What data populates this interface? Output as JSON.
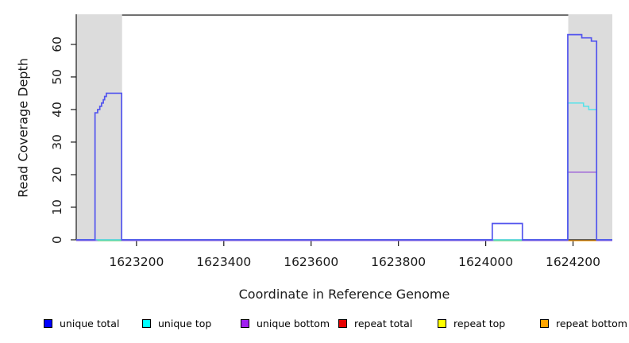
{
  "chart_data": {
    "type": "line",
    "step": true,
    "title": "",
    "xlabel": "Coordinate in Reference Genome",
    "ylabel": "Read Coverage Depth",
    "xlim": [
      1623062,
      1624290
    ],
    "ylim": [
      0,
      69
    ],
    "xticks": [
      1623200,
      1623400,
      1623600,
      1623800,
      1624000,
      1624200
    ],
    "yticks": [
      0,
      10,
      20,
      30,
      40,
      50,
      60
    ],
    "grid": false,
    "legend_position": "bottom",
    "axis_color": "#1a1a1a",
    "shade_color": "#dcdcdc",
    "shaded_regions": [
      {
        "x0": 1623062,
        "x1": 1623167
      },
      {
        "x0": 1624189,
        "x1": 1624290
      }
    ],
    "series": [
      {
        "name": "unique total",
        "legend_color": "#0000ff",
        "line_color": "#5355ee",
        "visible": true,
        "points": [
          [
            1623062,
            0
          ],
          [
            1623105,
            39
          ],
          [
            1623111,
            40
          ],
          [
            1623116,
            41
          ],
          [
            1623120,
            42
          ],
          [
            1623124,
            43
          ],
          [
            1623127,
            44
          ],
          [
            1623131,
            45
          ],
          [
            1623166,
            0
          ],
          [
            1624015,
            5
          ],
          [
            1624084,
            0
          ],
          [
            1624188,
            63
          ],
          [
            1624220,
            62
          ],
          [
            1624242,
            61
          ],
          [
            1624254,
            0
          ],
          [
            1624290,
            0
          ]
        ]
      },
      {
        "name": "unique top",
        "legend_color": "#00ffff",
        "line_color": "#55e2ea",
        "visible": true,
        "points": [
          [
            1623062,
            0
          ],
          [
            1624188,
            42
          ],
          [
            1624224,
            41
          ],
          [
            1624236,
            40
          ],
          [
            1624254,
            0
          ],
          [
            1624290,
            0
          ]
        ]
      },
      {
        "name": "unique bottom",
        "legend_color": "#a020f0",
        "line_color": "#a06ad8",
        "visible": true,
        "points": [
          [
            1623062,
            0
          ],
          [
            1624188,
            21
          ],
          [
            1624254,
            0
          ],
          [
            1624290,
            0
          ]
        ]
      },
      {
        "name": "repeat total",
        "legend_color": "#e60000",
        "line_color": "#e60000",
        "visible": false,
        "points": [
          [
            1623062,
            0
          ],
          [
            1624290,
            0
          ]
        ]
      },
      {
        "name": "repeat top",
        "legend_color": "#ffff00",
        "line_color": "#e6e600",
        "visible": false,
        "points": [
          [
            1623062,
            0
          ],
          [
            1624290,
            0
          ]
        ]
      },
      {
        "name": "repeat bottom",
        "legend_color": "#ffa500",
        "line_color": "#ffa41e",
        "visible": false,
        "points": [
          [
            1623062,
            0
          ],
          [
            1624290,
            0
          ]
        ]
      }
    ],
    "overlay_segments": [
      {
        "color": "#7ed87e",
        "x0": 1623111,
        "x1": 1623166,
        "y": 0
      },
      {
        "color": "#7ed87e",
        "x0": 1624018,
        "x1": 1624083,
        "y": 0
      },
      {
        "color": "#ffa41e",
        "x0": 1624189,
        "x1": 1624253,
        "y": 0
      }
    ]
  }
}
